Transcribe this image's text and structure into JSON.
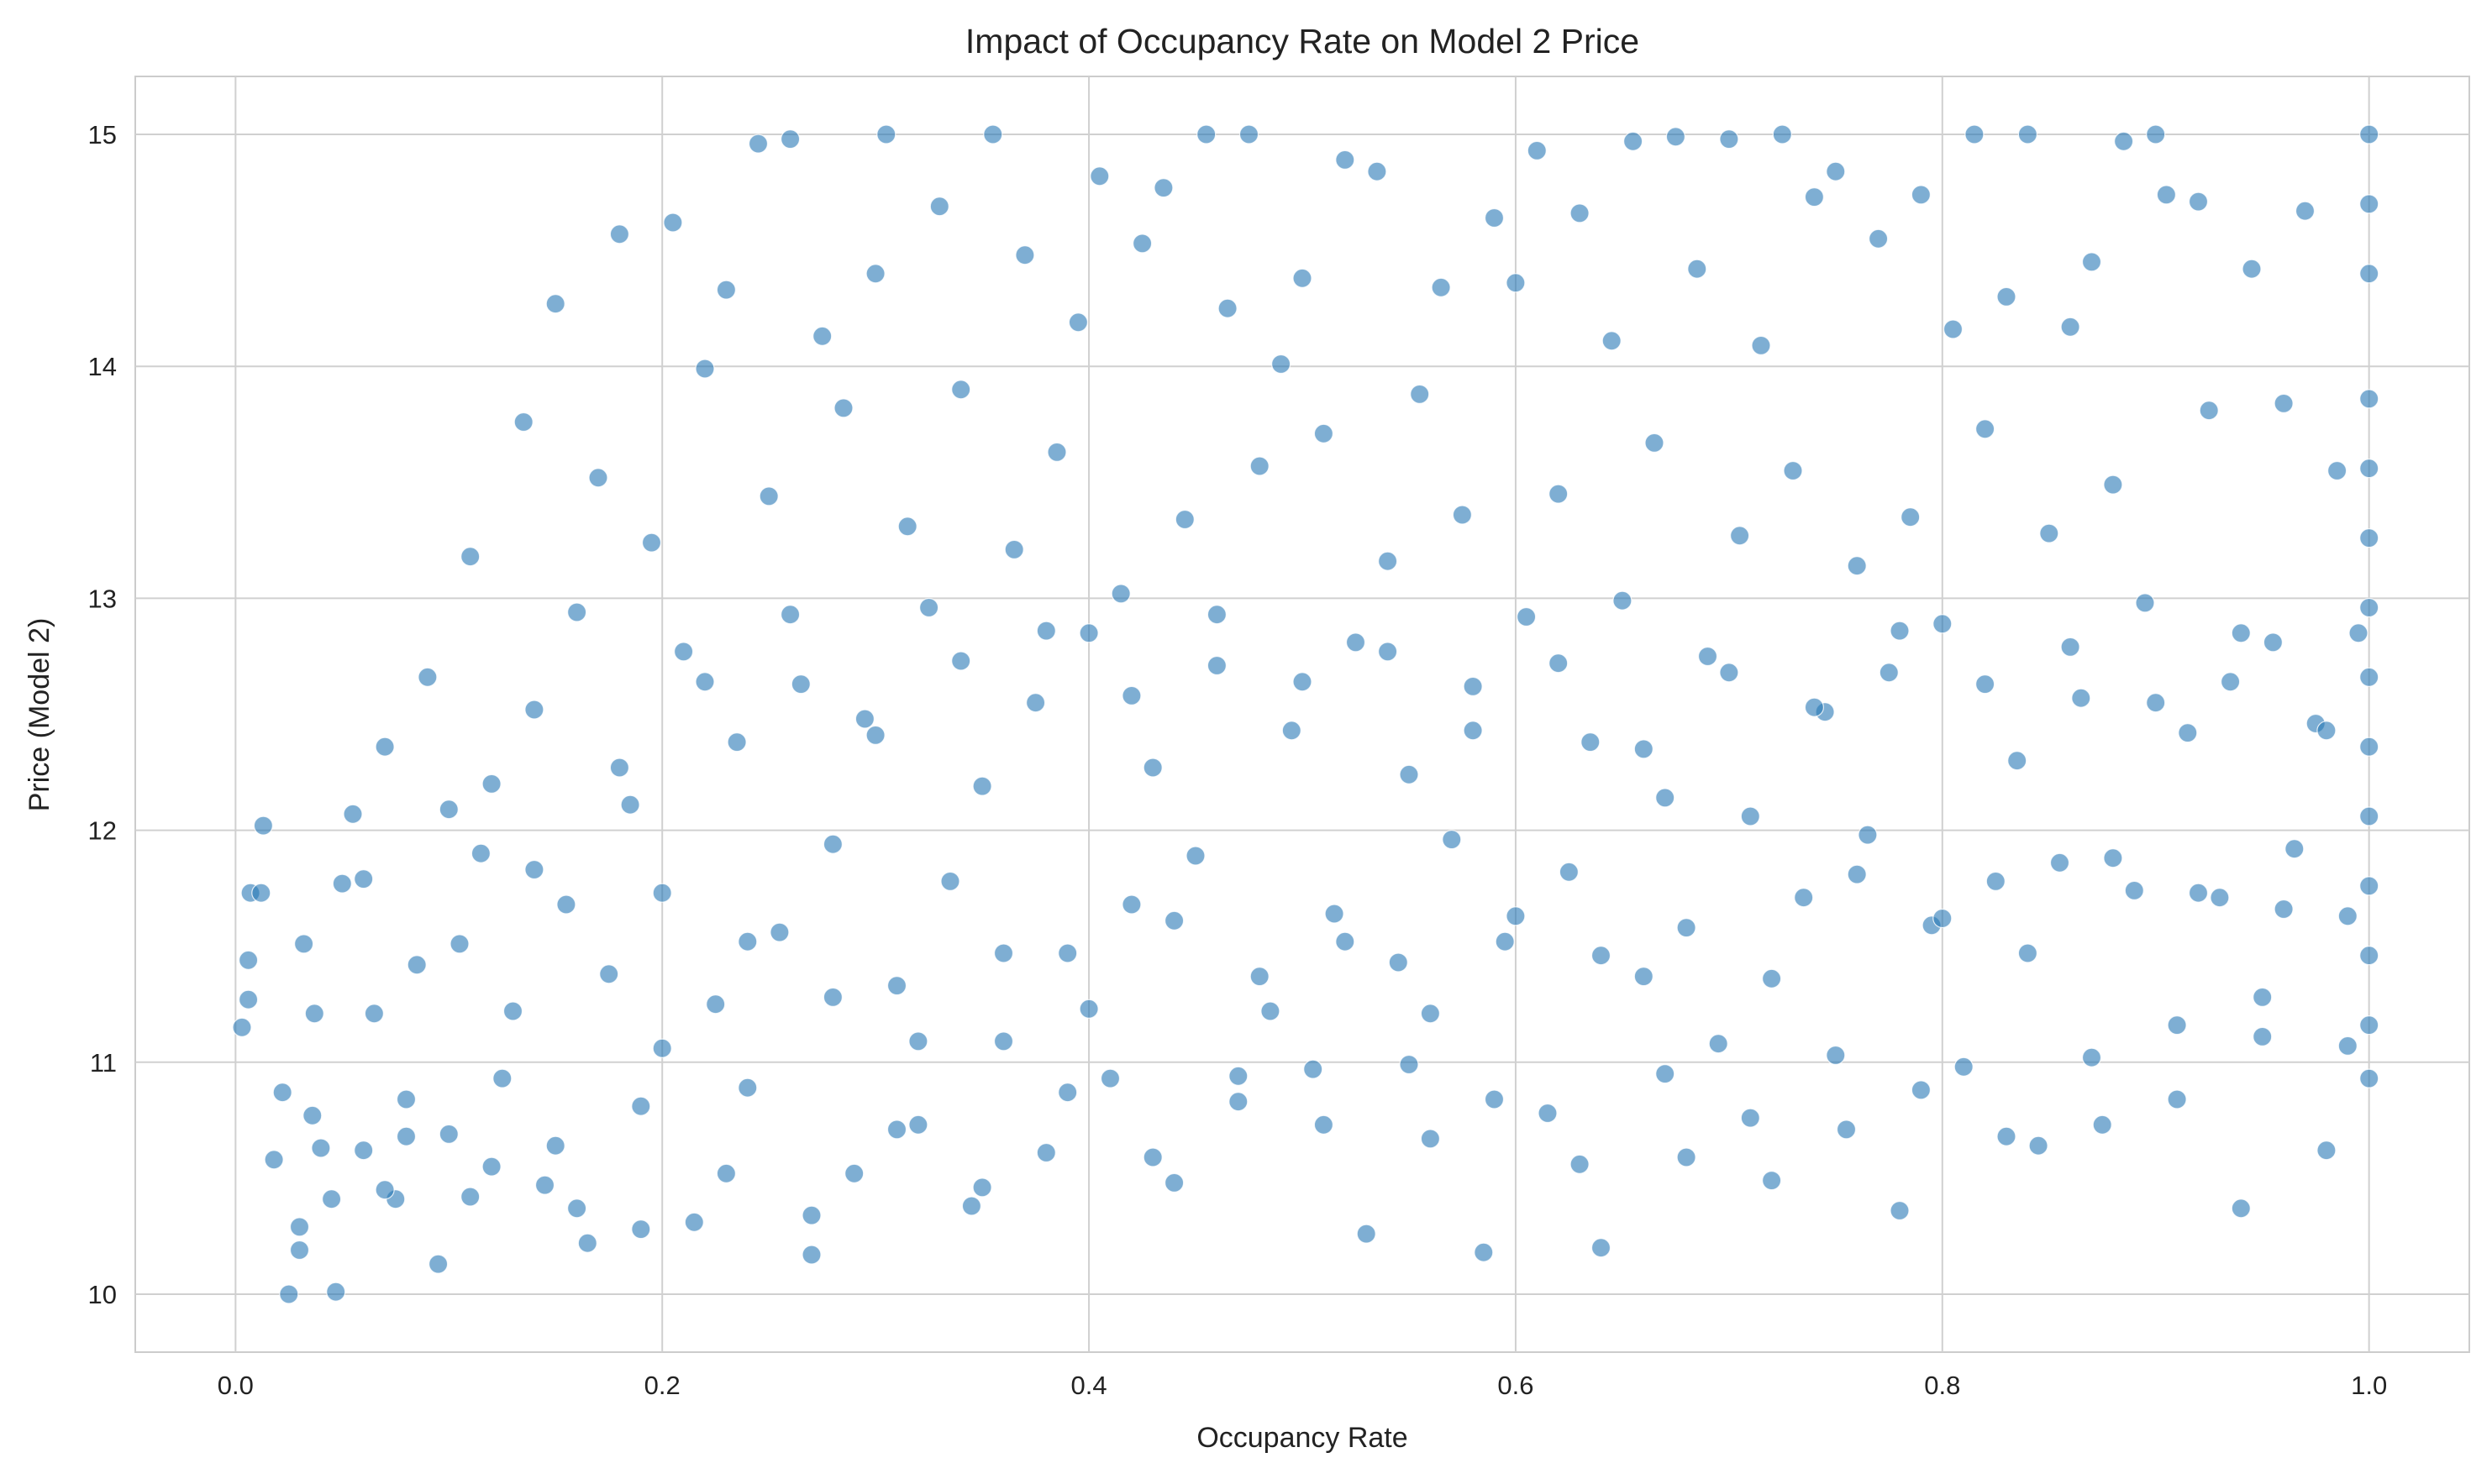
{
  "chart_data": {
    "type": "scatter",
    "title": "Impact of Occupancy Rate on Model 2 Price",
    "xlabel": "Occupancy Rate",
    "ylabel": "Price (Model 2)",
    "xlim": [
      -0.047,
      1.047
    ],
    "ylim": [
      9.75,
      15.25
    ],
    "x_ticks": [
      0.0,
      0.2,
      0.4,
      0.6,
      0.8,
      1.0
    ],
    "x_tick_labels": [
      "0.0",
      "0.2",
      "0.4",
      "0.6",
      "0.8",
      "1.0"
    ],
    "y_ticks": [
      10,
      11,
      12,
      13,
      14,
      15
    ],
    "y_tick_labels": [
      "10",
      "11",
      "12",
      "13",
      "14",
      "15"
    ],
    "grid": true,
    "legend": "none",
    "marker_color": "#2878b5",
    "marker_alpha": 0.6,
    "marker_edge_color": "#ffffff",
    "series": [
      {
        "points": [
          [
            0.003,
            11.15
          ],
          [
            0.006,
            11.27
          ],
          [
            0.006,
            11.44
          ],
          [
            0.007,
            11.73
          ],
          [
            0.012,
            11.73
          ],
          [
            0.013,
            12.02
          ],
          [
            0.018,
            10.58
          ],
          [
            0.022,
            10.87
          ],
          [
            0.025,
            10.0
          ],
          [
            0.03,
            10.19
          ],
          [
            0.03,
            10.29
          ],
          [
            0.032,
            11.51
          ],
          [
            0.036,
            10.77
          ],
          [
            0.037,
            11.21
          ],
          [
            0.04,
            10.63
          ],
          [
            0.045,
            10.41
          ],
          [
            0.047,
            10.01
          ],
          [
            0.05,
            11.77
          ],
          [
            0.055,
            12.07
          ],
          [
            0.06,
            10.62
          ],
          [
            0.065,
            11.21
          ],
          [
            0.07,
            12.36
          ],
          [
            0.075,
            10.41
          ],
          [
            0.08,
            10.84
          ],
          [
            0.085,
            11.42
          ],
          [
            0.09,
            12.66
          ],
          [
            0.095,
            10.13
          ],
          [
            0.1,
            10.69
          ],
          [
            0.105,
            11.51
          ],
          [
            0.11,
            13.18
          ],
          [
            0.115,
            11.9
          ],
          [
            0.12,
            12.2
          ],
          [
            0.125,
            10.93
          ],
          [
            0.13,
            11.22
          ],
          [
            0.135,
            13.76
          ],
          [
            0.14,
            12.52
          ],
          [
            0.145,
            10.47
          ],
          [
            0.15,
            14.27
          ],
          [
            0.155,
            11.68
          ],
          [
            0.16,
            12.94
          ],
          [
            0.165,
            10.22
          ],
          [
            0.17,
            13.52
          ],
          [
            0.175,
            11.38
          ],
          [
            0.18,
            14.57
          ],
          [
            0.185,
            12.11
          ],
          [
            0.19,
            10.81
          ],
          [
            0.195,
            13.24
          ],
          [
            0.2,
            11.73
          ],
          [
            0.205,
            14.62
          ],
          [
            0.21,
            12.77
          ],
          [
            0.215,
            10.31
          ],
          [
            0.22,
            13.99
          ],
          [
            0.225,
            11.25
          ],
          [
            0.23,
            14.33
          ],
          [
            0.235,
            12.38
          ],
          [
            0.24,
            10.89
          ],
          [
            0.245,
            14.96
          ],
          [
            0.25,
            13.44
          ],
          [
            0.255,
            11.56
          ],
          [
            0.26,
            14.98
          ],
          [
            0.265,
            12.63
          ],
          [
            0.27,
            10.17
          ],
          [
            0.275,
            14.13
          ],
          [
            0.28,
            11.94
          ],
          [
            0.285,
            13.82
          ],
          [
            0.29,
            10.52
          ],
          [
            0.295,
            12.48
          ],
          [
            0.3,
            14.4
          ],
          [
            0.305,
            15.0
          ],
          [
            0.31,
            11.33
          ],
          [
            0.315,
            13.31
          ],
          [
            0.32,
            10.73
          ],
          [
            0.325,
            12.96
          ],
          [
            0.33,
            14.69
          ],
          [
            0.335,
            11.78
          ],
          [
            0.34,
            13.9
          ],
          [
            0.345,
            10.38
          ],
          [
            0.35,
            12.19
          ],
          [
            0.355,
            15.0
          ],
          [
            0.36,
            11.09
          ],
          [
            0.365,
            13.21
          ],
          [
            0.37,
            14.48
          ],
          [
            0.375,
            12.55
          ],
          [
            0.38,
            10.61
          ],
          [
            0.385,
            13.63
          ],
          [
            0.39,
            11.47
          ],
          [
            0.395,
            14.19
          ],
          [
            0.4,
            12.85
          ],
          [
            0.405,
            14.82
          ],
          [
            0.41,
            10.93
          ],
          [
            0.415,
            13.02
          ],
          [
            0.42,
            11.68
          ],
          [
            0.425,
            14.53
          ],
          [
            0.43,
            12.27
          ],
          [
            0.435,
            14.77
          ],
          [
            0.44,
            10.48
          ],
          [
            0.445,
            13.34
          ],
          [
            0.45,
            11.89
          ],
          [
            0.455,
            15.0
          ],
          [
            0.46,
            12.71
          ],
          [
            0.465,
            14.25
          ],
          [
            0.47,
            10.83
          ],
          [
            0.475,
            15.0
          ],
          [
            0.48,
            13.57
          ],
          [
            0.485,
            11.22
          ],
          [
            0.49,
            14.01
          ],
          [
            0.495,
            12.43
          ],
          [
            0.5,
            14.38
          ],
          [
            0.505,
            10.97
          ],
          [
            0.51,
            13.71
          ],
          [
            0.515,
            11.64
          ],
          [
            0.52,
            14.89
          ],
          [
            0.525,
            12.81
          ],
          [
            0.53,
            10.26
          ],
          [
            0.535,
            14.84
          ],
          [
            0.54,
            13.16
          ],
          [
            0.545,
            11.43
          ],
          [
            0.55,
            12.24
          ],
          [
            0.555,
            13.88
          ],
          [
            0.56,
            10.67
          ],
          [
            0.565,
            14.34
          ],
          [
            0.57,
            11.96
          ],
          [
            0.575,
            13.36
          ],
          [
            0.58,
            12.62
          ],
          [
            0.585,
            10.18
          ],
          [
            0.59,
            14.64
          ],
          [
            0.595,
            11.52
          ],
          [
            0.6,
            14.36
          ],
          [
            0.605,
            12.92
          ],
          [
            0.61,
            14.93
          ],
          [
            0.615,
            10.78
          ],
          [
            0.62,
            13.45
          ],
          [
            0.625,
            11.82
          ],
          [
            0.63,
            14.66
          ],
          [
            0.635,
            12.38
          ],
          [
            0.64,
            10.2
          ],
          [
            0.645,
            14.11
          ],
          [
            0.65,
            12.99
          ],
          [
            0.655,
            14.97
          ],
          [
            0.66,
            11.37
          ],
          [
            0.665,
            13.67
          ],
          [
            0.67,
            12.14
          ],
          [
            0.675,
            14.99
          ],
          [
            0.68,
            10.59
          ],
          [
            0.685,
            14.42
          ],
          [
            0.69,
            12.75
          ],
          [
            0.695,
            11.08
          ],
          [
            0.7,
            14.98
          ],
          [
            0.705,
            13.27
          ],
          [
            0.71,
            12.06
          ],
          [
            0.715,
            14.09
          ],
          [
            0.72,
            10.49
          ],
          [
            0.725,
            15.0
          ],
          [
            0.73,
            13.55
          ],
          [
            0.735,
            11.71
          ],
          [
            0.74,
            14.73
          ],
          [
            0.745,
            12.51
          ],
          [
            0.75,
            14.84
          ],
          [
            0.755,
            10.71
          ],
          [
            0.76,
            13.14
          ],
          [
            0.765,
            11.98
          ],
          [
            0.77,
            14.55
          ],
          [
            0.775,
            12.68
          ],
          [
            0.78,
            10.36
          ],
          [
            0.785,
            13.35
          ],
          [
            0.79,
            14.74
          ],
          [
            0.795,
            11.59
          ],
          [
            0.8,
            12.89
          ],
          [
            0.805,
            14.16
          ],
          [
            0.81,
            10.98
          ],
          [
            0.815,
            15.0
          ],
          [
            0.82,
            13.73
          ],
          [
            0.825,
            11.78
          ],
          [
            0.83,
            14.3
          ],
          [
            0.835,
            12.3
          ],
          [
            0.84,
            15.0
          ],
          [
            0.845,
            10.64
          ],
          [
            0.85,
            13.28
          ],
          [
            0.855,
            11.86
          ],
          [
            0.86,
            14.17
          ],
          [
            0.865,
            12.57
          ],
          [
            0.87,
            14.45
          ],
          [
            0.875,
            10.73
          ],
          [
            0.88,
            13.49
          ],
          [
            0.885,
            14.97
          ],
          [
            0.89,
            11.74
          ],
          [
            0.895,
            12.98
          ],
          [
            0.9,
            15.0
          ],
          [
            0.905,
            14.74
          ],
          [
            0.91,
            11.16
          ],
          [
            0.915,
            12.42
          ],
          [
            0.92,
            14.71
          ],
          [
            0.925,
            13.81
          ],
          [
            0.93,
            11.71
          ],
          [
            0.935,
            12.64
          ],
          [
            0.94,
            10.37
          ],
          [
            0.945,
            14.42
          ],
          [
            0.95,
            11.28
          ],
          [
            0.955,
            12.81
          ],
          [
            0.96,
            13.84
          ],
          [
            0.965,
            11.92
          ],
          [
            0.97,
            14.67
          ],
          [
            0.975,
            12.46
          ],
          [
            0.98,
            10.62
          ],
          [
            0.985,
            13.55
          ],
          [
            0.99,
            11.63
          ],
          [
            0.995,
            12.85
          ],
          [
            1.0,
            15.0
          ],
          [
            1.0,
            14.7
          ],
          [
            1.0,
            14.4
          ],
          [
            1.0,
            13.86
          ],
          [
            1.0,
            13.56
          ],
          [
            1.0,
            13.26
          ],
          [
            1.0,
            12.96
          ],
          [
            1.0,
            12.66
          ],
          [
            1.0,
            12.36
          ],
          [
            1.0,
            12.06
          ],
          [
            1.0,
            11.76
          ],
          [
            1.0,
            11.46
          ],
          [
            1.0,
            11.16
          ],
          [
            1.0,
            10.93
          ],
          [
            0.06,
            11.79
          ],
          [
            0.08,
            10.68
          ],
          [
            0.1,
            12.09
          ],
          [
            0.12,
            10.55
          ],
          [
            0.14,
            11.83
          ],
          [
            0.16,
            10.37
          ],
          [
            0.18,
            12.27
          ],
          [
            0.2,
            11.06
          ],
          [
            0.22,
            12.64
          ],
          [
            0.24,
            11.52
          ],
          [
            0.26,
            12.93
          ],
          [
            0.28,
            11.28
          ],
          [
            0.3,
            12.41
          ],
          [
            0.32,
            11.09
          ],
          [
            0.34,
            12.73
          ],
          [
            0.36,
            11.47
          ],
          [
            0.38,
            12.86
          ],
          [
            0.4,
            11.23
          ],
          [
            0.42,
            12.58
          ],
          [
            0.44,
            11.61
          ],
          [
            0.46,
            12.93
          ],
          [
            0.48,
            11.37
          ],
          [
            0.5,
            12.64
          ],
          [
            0.52,
            11.52
          ],
          [
            0.54,
            12.77
          ],
          [
            0.56,
            11.21
          ],
          [
            0.58,
            12.43
          ],
          [
            0.6,
            11.63
          ],
          [
            0.62,
            12.72
          ],
          [
            0.64,
            11.46
          ],
          [
            0.66,
            12.35
          ],
          [
            0.68,
            11.58
          ],
          [
            0.7,
            12.68
          ],
          [
            0.72,
            11.36
          ],
          [
            0.74,
            12.53
          ],
          [
            0.76,
            11.81
          ],
          [
            0.78,
            12.86
          ],
          [
            0.8,
            11.62
          ],
          [
            0.82,
            12.63
          ],
          [
            0.84,
            11.47
          ],
          [
            0.86,
            12.79
          ],
          [
            0.88,
            11.88
          ],
          [
            0.9,
            12.55
          ],
          [
            0.92,
            11.73
          ],
          [
            0.94,
            12.85
          ],
          [
            0.96,
            11.66
          ],
          [
            0.98,
            12.43
          ],
          [
            0.07,
            10.45
          ],
          [
            0.11,
            10.42
          ],
          [
            0.15,
            10.64
          ],
          [
            0.19,
            10.28
          ],
          [
            0.23,
            10.52
          ],
          [
            0.27,
            10.34
          ],
          [
            0.31,
            10.71
          ],
          [
            0.35,
            10.46
          ],
          [
            0.39,
            10.87
          ],
          [
            0.43,
            10.59
          ],
          [
            0.47,
            10.94
          ],
          [
            0.51,
            10.73
          ],
          [
            0.55,
            10.99
          ],
          [
            0.59,
            10.84
          ],
          [
            0.63,
            10.56
          ],
          [
            0.67,
            10.95
          ],
          [
            0.71,
            10.76
          ],
          [
            0.75,
            11.03
          ],
          [
            0.79,
            10.88
          ],
          [
            0.83,
            10.68
          ],
          [
            0.87,
            11.02
          ],
          [
            0.91,
            10.84
          ],
          [
            0.95,
            11.11
          ],
          [
            0.99,
            11.07
          ]
        ]
      }
    ]
  }
}
